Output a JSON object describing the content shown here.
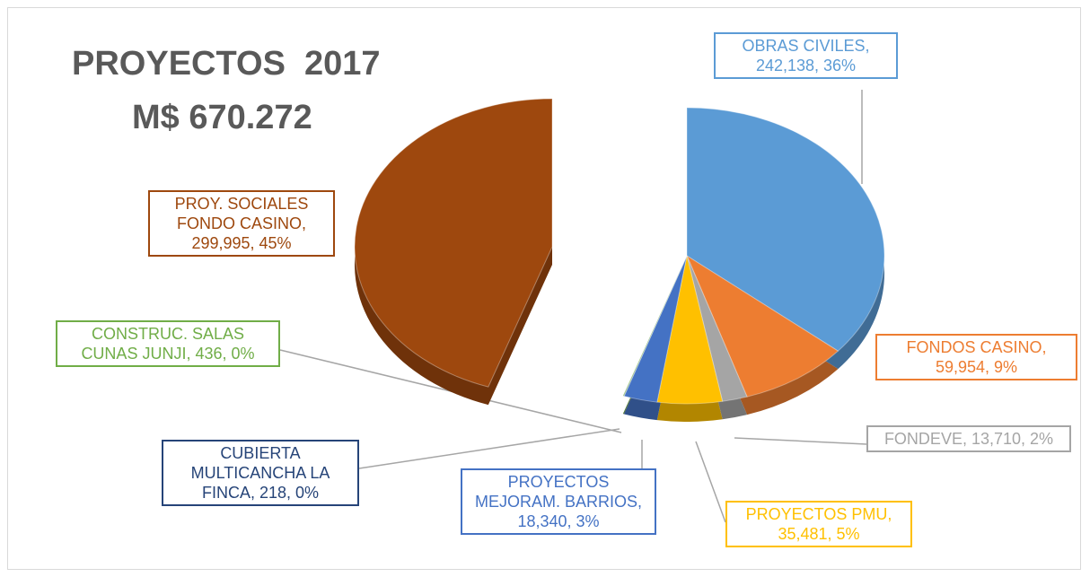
{
  "chart_data": {
    "type": "pie",
    "title": "PROYECTOS  2017",
    "subtitle": "M$ 670.272",
    "categories": [
      "OBRAS CIVILES",
      "FONDOS CASINO",
      "FONDEVE",
      "PROYECTOS PMU",
      "PROYECTOS MEJORAM. BARRIOS",
      "CUBIERTA MULTICANCHA LA FINCA",
      "CONSTRUC. SALAS CUNAS JUNJI",
      "PROY. SOCIALES FONDO CASINO"
    ],
    "values": [
      242138,
      59954,
      13710,
      35481,
      18340,
      218,
      436,
      299995
    ],
    "value_labels": [
      "242,138",
      "59,954",
      "13,710",
      "35,481",
      "18,340",
      "218",
      "436",
      "299,995"
    ],
    "percents": [
      36,
      9,
      2,
      5,
      3,
      0,
      0,
      45
    ],
    "percent_labels": [
      "36%",
      "9%",
      "2%",
      "5%",
      "3%",
      "0%",
      "0%",
      "45%"
    ],
    "colors": [
      "#5b9bd5",
      "#ed7d31",
      "#a5a5a5",
      "#ffc000",
      "#4472c4",
      "#264478",
      "#70ad47",
      "#9e480e"
    ]
  }
}
